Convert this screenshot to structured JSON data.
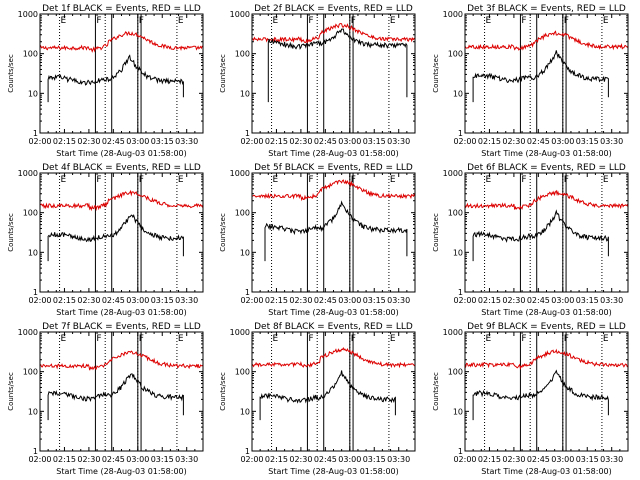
{
  "chart_data": {
    "type": "line",
    "grid": "3x3",
    "ylabel": "Counts/sec",
    "xlabel": "Start Time (28-Aug-03 01:58:00)",
    "x_tick_labels": [
      "02:00",
      "02:15",
      "02:30",
      "02:45",
      "03:00",
      "03:15",
      "03:30"
    ],
    "y_tick_labels": [
      "1",
      "10",
      "100",
      "1000"
    ],
    "yscale": "log",
    "ylim": [
      1,
      1000
    ],
    "xlim_minutes_after_0200": [
      0,
      100
    ],
    "series_legend": {
      "black": "Events",
      "red": "LLD"
    },
    "colors": {
      "events": "#000000",
      "lld": "#dd0000"
    },
    "dotted_lines_minutes": [
      12,
      40,
      60,
      84
    ],
    "solid_lines_minutes": [
      34,
      44,
      60,
      62
    ],
    "markers": [
      {
        "label": "E",
        "minute": 12
      },
      {
        "label": "F",
        "minute": 34
      },
      {
        "label": "F",
        "minute": 60
      },
      {
        "label": "E",
        "minute": 84
      }
    ],
    "panels": [
      {
        "title": "Det 1f BLACK = Events, RED = LLD",
        "events_start_minute": 5,
        "events_end_minute": 88,
        "lld_base": 140,
        "lld_peak": 330,
        "events_base": 22,
        "events_peak": 85,
        "peak_minute": 55
      },
      {
        "title": "Det 2f BLACK = Events, RED = LLD",
        "events_start_minute": 10,
        "events_end_minute": 95,
        "lld_base": 230,
        "lld_peak": 520,
        "events_base": 180,
        "events_peak": 420,
        "peak_minute": 55
      },
      {
        "title": "Det 3f BLACK = Events, RED = LLD",
        "events_start_minute": 5,
        "events_end_minute": 88,
        "lld_base": 150,
        "lld_peak": 330,
        "events_base": 25,
        "events_peak": 110,
        "peak_minute": 56
      },
      {
        "title": "Det 4f BLACK = Events, RED = LLD",
        "events_start_minute": 5,
        "events_end_minute": 88,
        "lld_base": 150,
        "lld_peak": 320,
        "events_base": 25,
        "events_peak": 95,
        "peak_minute": 56
      },
      {
        "title": "Det 5f BLACK = Events, RED = LLD",
        "events_start_minute": 8,
        "events_end_minute": 95,
        "lld_base": 260,
        "lld_peak": 600,
        "events_base": 40,
        "events_peak": 170,
        "peak_minute": 55
      },
      {
        "title": "Det 6f BLACK = Events, RED = LLD",
        "events_start_minute": 5,
        "events_end_minute": 88,
        "lld_base": 150,
        "lld_peak": 320,
        "events_base": 25,
        "events_peak": 100,
        "peak_minute": 56
      },
      {
        "title": "Det 7f BLACK = Events, RED = LLD",
        "events_start_minute": 5,
        "events_end_minute": 88,
        "lld_base": 140,
        "lld_peak": 300,
        "events_base": 25,
        "events_peak": 95,
        "peak_minute": 56
      },
      {
        "title": "Det 8f BLACK = Events, RED = LLD",
        "events_start_minute": 5,
        "events_end_minute": 88,
        "lld_base": 150,
        "lld_peak": 360,
        "events_base": 22,
        "events_peak": 95,
        "peak_minute": 55
      },
      {
        "title": "Det 9f BLACK = Events, RED = LLD",
        "events_start_minute": 5,
        "events_end_minute": 88,
        "lld_base": 150,
        "lld_peak": 320,
        "events_base": 25,
        "events_peak": 95,
        "peak_minute": 56
      }
    ]
  }
}
